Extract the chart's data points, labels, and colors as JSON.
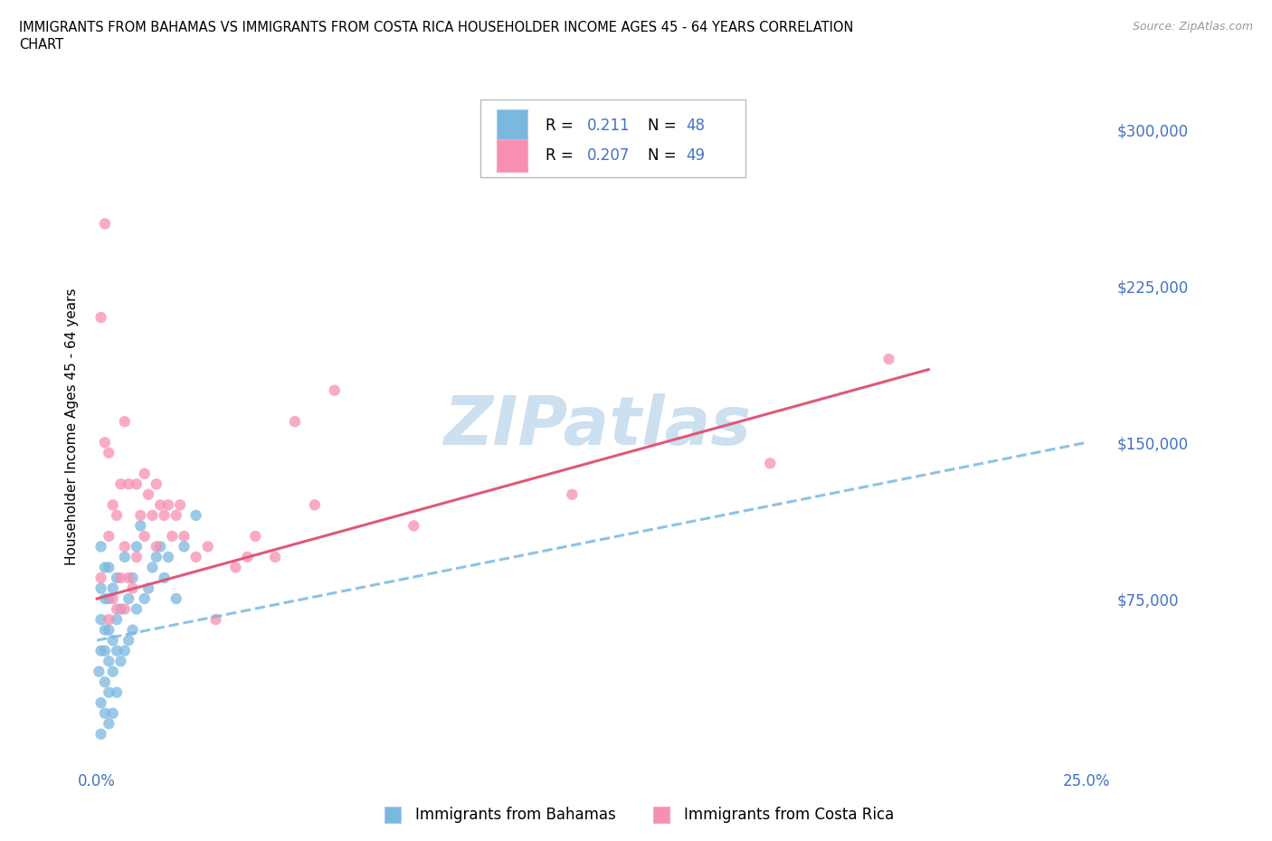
{
  "title_line1": "IMMIGRANTS FROM BAHAMAS VS IMMIGRANTS FROM COSTA RICA HOUSEHOLDER INCOME AGES 45 - 64 YEARS CORRELATION",
  "title_line2": "CHART",
  "source": "Source: ZipAtlas.com",
  "ylabel": "Householder Income Ages 45 - 64 years",
  "xlim": [
    -0.002,
    0.255
  ],
  "ylim": [
    -5000,
    320000
  ],
  "xticks": [
    0.0,
    0.05,
    0.1,
    0.15,
    0.2,
    0.25
  ],
  "yticks": [
    0,
    75000,
    150000,
    225000,
    300000
  ],
  "yticklabels": [
    "",
    "$75,000",
    "$150,000",
    "$225,000",
    "$300,000"
  ],
  "r_bahamas": 0.211,
  "n_bahamas": 48,
  "r_costa_rica": 0.207,
  "n_costa_rica": 49,
  "color_bahamas": "#7ab8e0",
  "color_costa_rica": "#f78fb3",
  "color_trend_bahamas": "#7ab8e0",
  "color_trend_costa_rica": "#e05878",
  "color_axis": "#4472c4",
  "watermark": "ZIPatlas",
  "watermark_color": "#cce0f0",
  "legend_bahamas": "Immigrants from Bahamas",
  "legend_costa_rica": "Immigrants from Costa Rica",
  "bahamas_x": [
    0.0005,
    0.001,
    0.001,
    0.001,
    0.001,
    0.001,
    0.001,
    0.002,
    0.002,
    0.002,
    0.002,
    0.002,
    0.002,
    0.003,
    0.003,
    0.003,
    0.003,
    0.003,
    0.003,
    0.004,
    0.004,
    0.004,
    0.004,
    0.005,
    0.005,
    0.005,
    0.005,
    0.006,
    0.006,
    0.007,
    0.007,
    0.008,
    0.008,
    0.009,
    0.009,
    0.01,
    0.01,
    0.011,
    0.012,
    0.013,
    0.014,
    0.015,
    0.016,
    0.017,
    0.018,
    0.02,
    0.022,
    0.025
  ],
  "bahamas_y": [
    40000,
    10000,
    25000,
    50000,
    65000,
    80000,
    100000,
    20000,
    35000,
    50000,
    60000,
    75000,
    90000,
    15000,
    30000,
    45000,
    60000,
    75000,
    90000,
    20000,
    40000,
    55000,
    80000,
    30000,
    50000,
    65000,
    85000,
    45000,
    70000,
    50000,
    95000,
    55000,
    75000,
    60000,
    85000,
    70000,
    100000,
    110000,
    75000,
    80000,
    90000,
    95000,
    100000,
    85000,
    95000,
    75000,
    100000,
    115000
  ],
  "costa_rica_x": [
    0.001,
    0.001,
    0.002,
    0.002,
    0.003,
    0.003,
    0.003,
    0.004,
    0.004,
    0.005,
    0.005,
    0.006,
    0.006,
    0.007,
    0.007,
    0.007,
    0.008,
    0.008,
    0.009,
    0.01,
    0.01,
    0.011,
    0.012,
    0.012,
    0.013,
    0.014,
    0.015,
    0.015,
    0.016,
    0.017,
    0.018,
    0.019,
    0.02,
    0.021,
    0.022,
    0.025,
    0.028,
    0.03,
    0.035,
    0.038,
    0.04,
    0.045,
    0.05,
    0.055,
    0.06,
    0.08,
    0.12,
    0.17,
    0.2
  ],
  "costa_rica_y": [
    85000,
    210000,
    150000,
    255000,
    65000,
    105000,
    145000,
    75000,
    120000,
    70000,
    115000,
    85000,
    130000,
    70000,
    100000,
    160000,
    85000,
    130000,
    80000,
    95000,
    130000,
    115000,
    105000,
    135000,
    125000,
    115000,
    130000,
    100000,
    120000,
    115000,
    120000,
    105000,
    115000,
    120000,
    105000,
    95000,
    100000,
    65000,
    90000,
    95000,
    105000,
    95000,
    160000,
    120000,
    175000,
    110000,
    125000,
    140000,
    190000
  ],
  "trend_bahamas_x0": 0.0,
  "trend_bahamas_x1": 0.25,
  "trend_bahamas_y0": 55000,
  "trend_bahamas_y1": 150000,
  "trend_costarica_x0": 0.0,
  "trend_costarica_x1": 0.21,
  "trend_costarica_y0": 75000,
  "trend_costarica_y1": 185000
}
